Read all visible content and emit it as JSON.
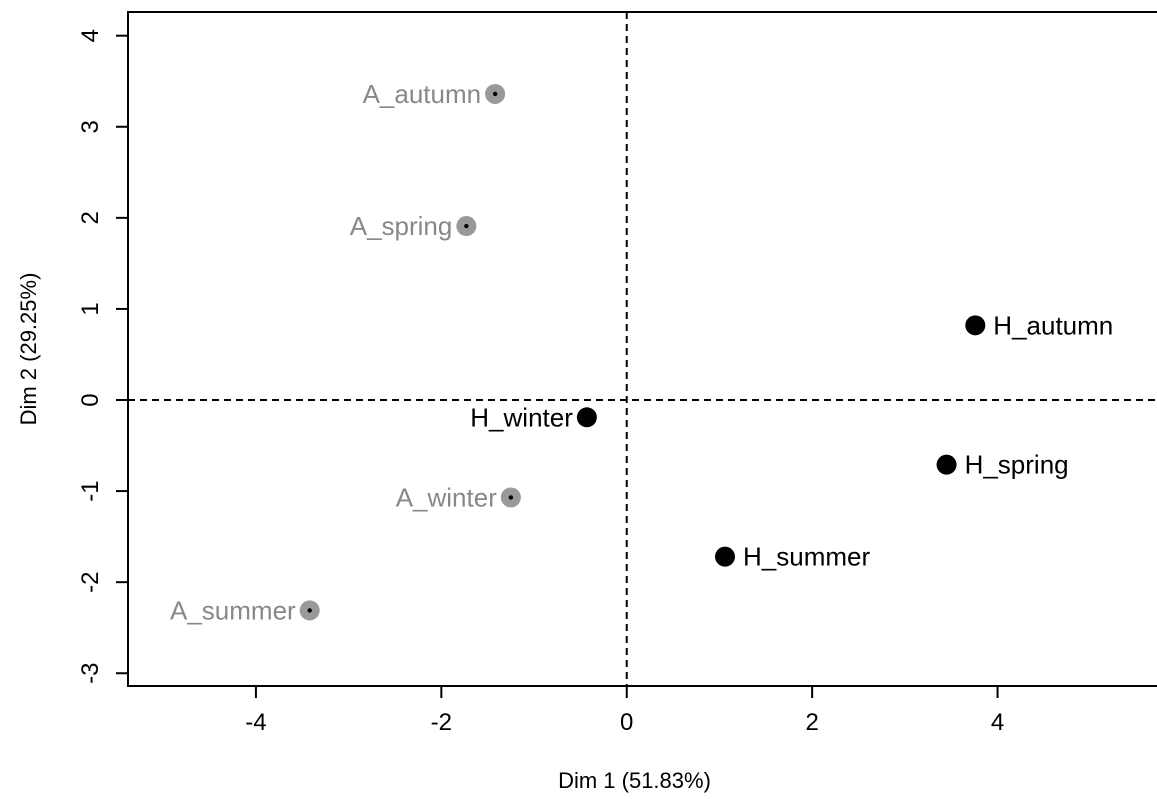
{
  "chart_data": {
    "type": "scatter",
    "title": "",
    "xlabel": "Dim 1 (51.83%)",
    "ylabel": "Dim 2 (29.25%)",
    "xlim": [
      -5.38,
      5.72
    ],
    "ylim": [
      -3.14,
      4.26
    ],
    "xticks": [
      -4,
      -2,
      0,
      2,
      4
    ],
    "yticks": [
      -3,
      -2,
      -1,
      0,
      1,
      2,
      3,
      4
    ],
    "reference_lines": {
      "x": 0,
      "y": 0,
      "style": "dashed"
    },
    "grid": false,
    "groups": {
      "A": {
        "color": "#888888",
        "marker_color": "#999999",
        "center_dot": true
      },
      "H": {
        "color": "#000000",
        "marker_color": "#000000",
        "center_dot": false
      }
    },
    "points": [
      {
        "label": "A_autumn",
        "group": "A",
        "x": -1.42,
        "y": 3.36,
        "label_side": "left"
      },
      {
        "label": "A_spring",
        "group": "A",
        "x": -1.73,
        "y": 1.91,
        "label_side": "left"
      },
      {
        "label": "A_winter",
        "group": "A",
        "x": -1.25,
        "y": -1.07,
        "label_side": "left"
      },
      {
        "label": "A_summer",
        "group": "A",
        "x": -3.42,
        "y": -2.31,
        "label_side": "left"
      },
      {
        "label": "H_winter",
        "group": "H",
        "x": -0.43,
        "y": -0.19,
        "label_side": "left"
      },
      {
        "label": "H_autumn",
        "group": "H",
        "x": 3.76,
        "y": 0.82,
        "label_side": "right"
      },
      {
        "label": "H_spring",
        "group": "H",
        "x": 3.45,
        "y": -0.71,
        "label_side": "right"
      },
      {
        "label": "H_summer",
        "group": "H",
        "x": 1.06,
        "y": -1.72,
        "label_side": "right"
      }
    ]
  }
}
